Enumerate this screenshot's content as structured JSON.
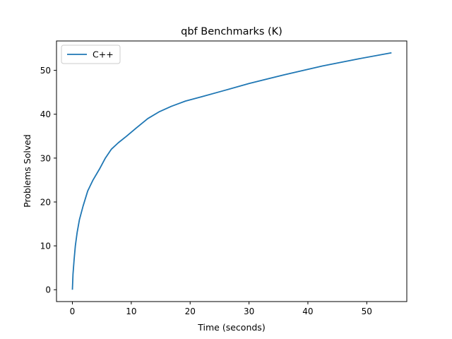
{
  "chart_data": {
    "type": "line",
    "title": "qbf Benchmarks (K)",
    "xlabel": "Time (seconds)",
    "ylabel": "Problems Solved",
    "xlim": [
      -2.7,
      56.8
    ],
    "ylim": [
      -2.7,
      56.7
    ],
    "xticks": [
      0,
      10,
      20,
      30,
      40,
      50
    ],
    "yticks": [
      0,
      10,
      20,
      30,
      40,
      50
    ],
    "xtick_labels": [
      "0",
      "10",
      "20",
      "30",
      "40",
      "50"
    ],
    "ytick_labels": [
      "0",
      "10",
      "20",
      "30",
      "40",
      "50"
    ],
    "grid": false,
    "legend": {
      "position": "upper-left"
    },
    "series": [
      {
        "name": "C++",
        "color": "#1f77b4",
        "x": [
          0,
          0.1,
          0.3,
          0.5,
          0.8,
          1.2,
          1.8,
          2.6,
          3.5,
          4.6,
          5.6,
          6.6,
          7.8,
          9.2,
          10.8,
          12.8,
          14.8,
          16.8,
          19.2,
          22,
          25.5,
          30,
          36,
          42.5,
          48.5,
          54.2
        ],
        "y": [
          0,
          3.5,
          7,
          10,
          13,
          16,
          19,
          22.5,
          25,
          27.5,
          30,
          32,
          33.5,
          35,
          36.8,
          39,
          40.6,
          41.8,
          43,
          44,
          45.3,
          47,
          49,
          51,
          52.6,
          54
        ]
      }
    ]
  }
}
